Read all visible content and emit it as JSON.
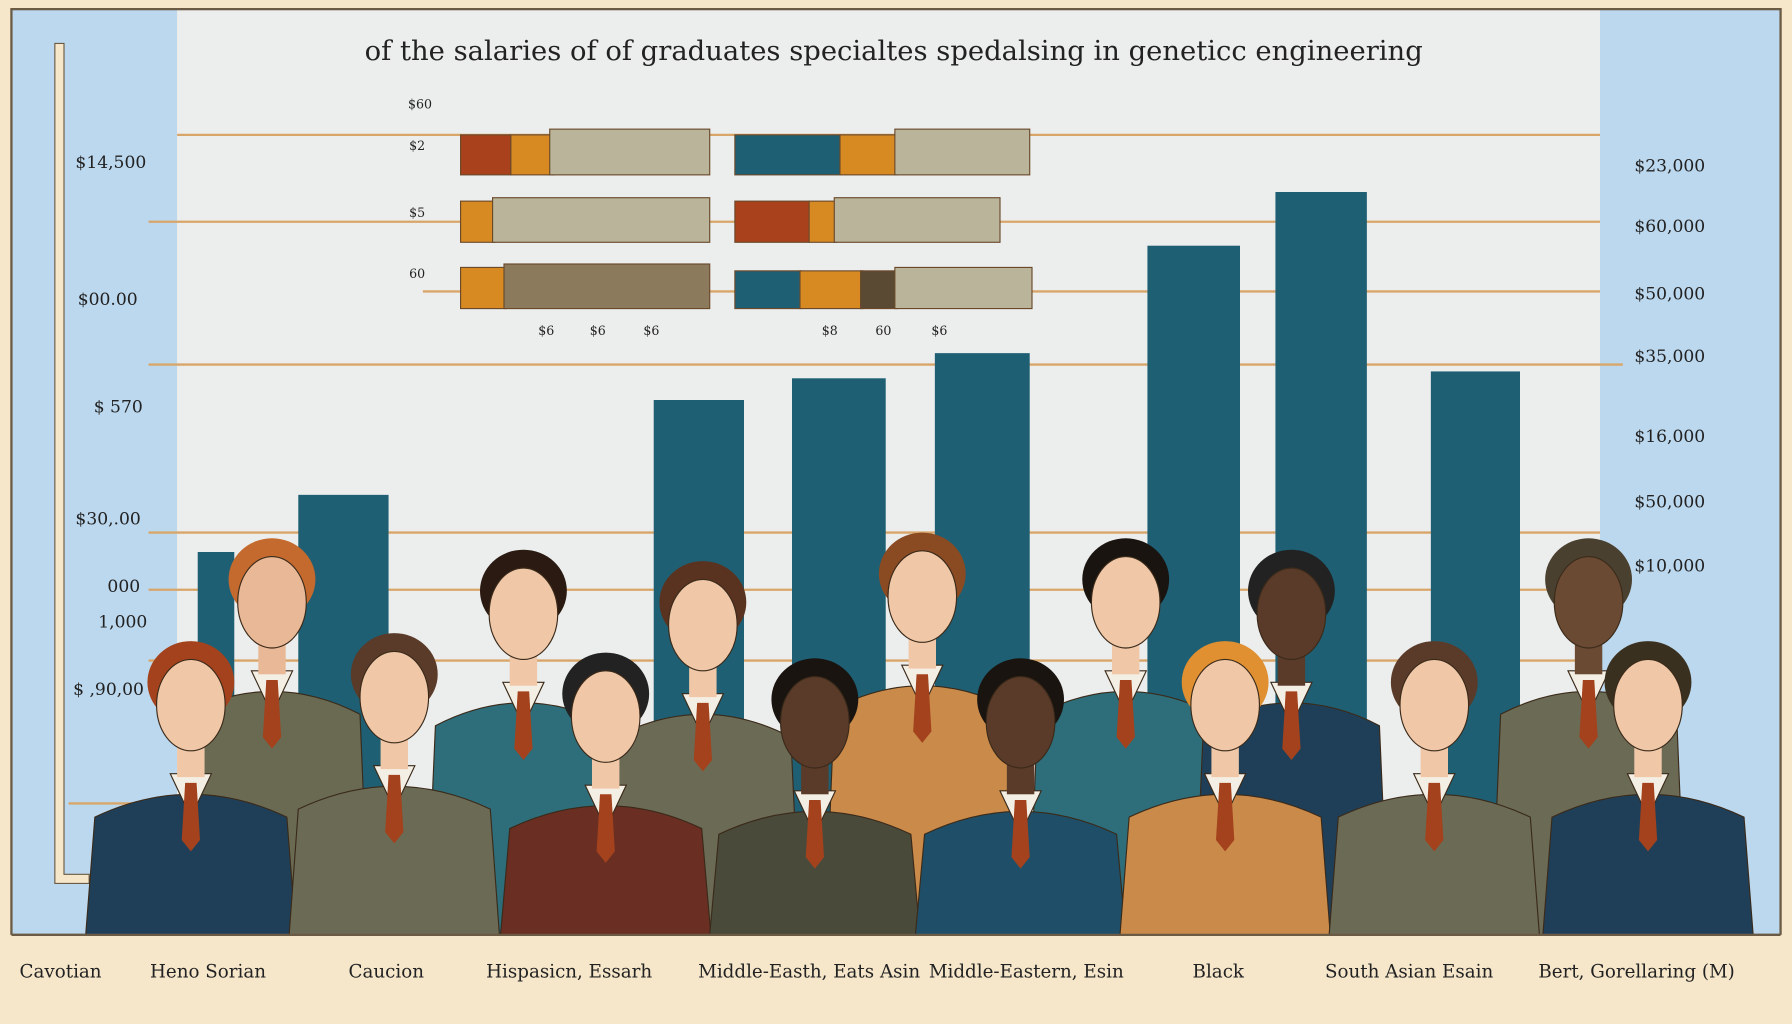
{
  "header": {
    "title": "of the salaries of of graduates specialtes spedalsing in geneticc engineering"
  },
  "left_axis": [
    "$14,500",
    "$00.00",
    "$ 570",
    "$30,.00",
    "000",
    "1,000",
    "$ ,90,00"
  ],
  "right_axis": [
    "$23,000",
    "$60,000",
    "$50,000",
    "$35,000",
    "$16,000",
    "$50,000",
    "$10,000"
  ],
  "inset": {
    "row_labels": [
      "$60",
      "$2",
      "$5",
      "60"
    ],
    "left_ticks": [
      "$6",
      "$6",
      "$6"
    ],
    "right_ticks": [
      "$8",
      "60",
      "$6"
    ]
  },
  "categories": [
    "Cavotian",
    "Heno Sorian",
    "Caucion",
    "Hispasicn, Essarh",
    "Middle-Easth, Eats Asin",
    "Middle-Eastern, Esin",
    "Black",
    "South Asian Esain",
    "Bert, Gorellaring (M)"
  ]
}
